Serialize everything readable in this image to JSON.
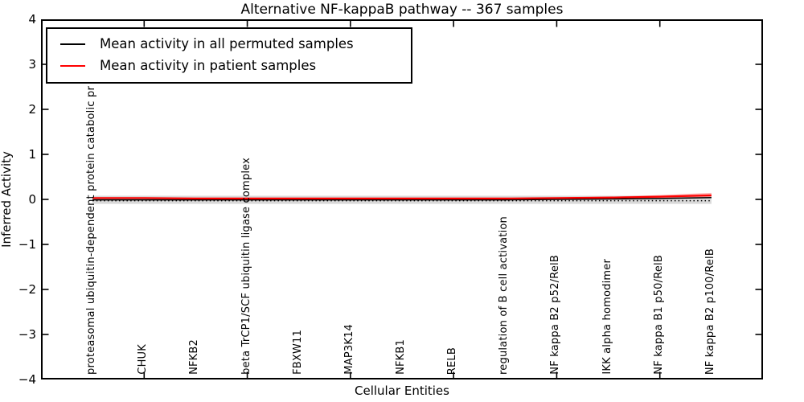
{
  "figure": {
    "title": "Alternative NF-kappaB pathway -- 367 samples",
    "xlabel": "Cellular Entities",
    "ylabel": "Inferred Activity"
  },
  "legend": {
    "position": "upper left",
    "items": [
      {
        "label": "Mean activity in all permuted samples",
        "color": "#000000"
      },
      {
        "label": "Mean activity in patient samples",
        "color": "#ff0000"
      }
    ]
  },
  "chart_data": {
    "type": "line",
    "title": "Alternative NF-kappaB pathway -- 367 samples",
    "xlabel": "Cellular Entities",
    "ylabel": "Inferred Activity",
    "ylim": [
      -4,
      4
    ],
    "yticks": [
      4,
      3,
      2,
      1,
      0,
      -1,
      -2,
      -3,
      -4
    ],
    "grid": false,
    "legend_position": "upper left",
    "categories": [
      "proteasomal ubiquitin-dependent protein catabolic pr",
      "CHUK",
      "NFKB2",
      "beta TrCP1/SCF ubiquitin ligase complex",
      "FBXW11",
      "MAP3K14",
      "NFKB1",
      "RELB",
      "regulation of B cell activation",
      "NF kappa B2 p52/RelB",
      "IKK alpha homodimer",
      "NF kappa B1 p50/RelB",
      "NF kappa B2 p100/RelB"
    ],
    "series": [
      {
        "name": "Mean activity in all permuted samples",
        "color": "#000000",
        "style": "solid",
        "width": 1.6,
        "values": [
          -0.01,
          -0.01,
          -0.01,
          -0.01,
          -0.01,
          -0.01,
          -0.01,
          -0.01,
          -0.01,
          0.0,
          0.01,
          0.02,
          0.04
        ]
      },
      {
        "name": "Mean activity in patient samples",
        "color": "#ff0000",
        "style": "solid",
        "width": 2.2,
        "values": [
          0.03,
          0.03,
          0.02,
          0.02,
          0.02,
          0.02,
          0.02,
          0.02,
          0.02,
          0.03,
          0.04,
          0.06,
          0.09
        ]
      },
      {
        "name": "zero-reference",
        "color": "#000000",
        "style": "dotted",
        "width": 1.5,
        "values": [
          -0.03,
          -0.03,
          -0.03,
          -0.03,
          -0.03,
          -0.03,
          -0.03,
          -0.03,
          -0.03,
          -0.03,
          -0.03,
          -0.03,
          -0.03
        ]
      }
    ],
    "bands": [
      {
        "name": "permuted-samples-range",
        "color": "#d9d9d9",
        "high": [
          0.08,
          0.08,
          0.08,
          0.08,
          0.08,
          0.08,
          0.08,
          0.08,
          0.08,
          0.08,
          0.08,
          0.08,
          0.08
        ],
        "low": [
          -0.1,
          -0.1,
          -0.1,
          -0.1,
          -0.1,
          -0.1,
          -0.1,
          -0.1,
          -0.1,
          -0.1,
          -0.1,
          -0.1,
          -0.1
        ]
      },
      {
        "name": "patient-samples-range",
        "color": "rgba(255,0,0,0.30)",
        "high": [
          0.03,
          0.03,
          0.02,
          0.02,
          0.02,
          0.02,
          0.02,
          0.02,
          0.02,
          0.04,
          0.06,
          0.095,
          0.145
        ],
        "low": [
          0.03,
          0.03,
          0.02,
          0.02,
          0.02,
          0.02,
          0.02,
          0.02,
          0.02,
          0.02,
          0.02,
          0.025,
          0.035
        ]
      }
    ]
  }
}
